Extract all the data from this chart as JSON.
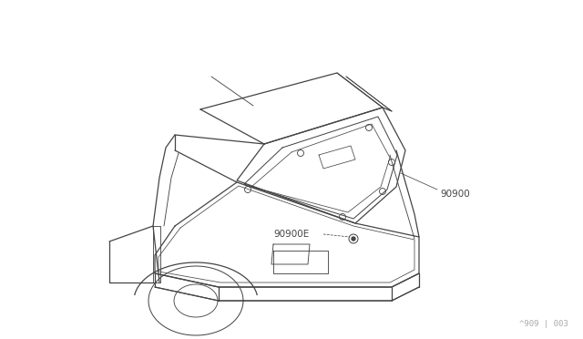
{
  "background_color": "#ffffff",
  "line_color": "#444444",
  "text_color": "#444444",
  "fig_width": 6.4,
  "fig_height": 3.72,
  "dpi": 100,
  "watermark_text": "^909 | 003",
  "watermark_fontsize": 6.5,
  "label_90900": "90900",
  "label_90900E": "90900E",
  "lw": 0.9
}
